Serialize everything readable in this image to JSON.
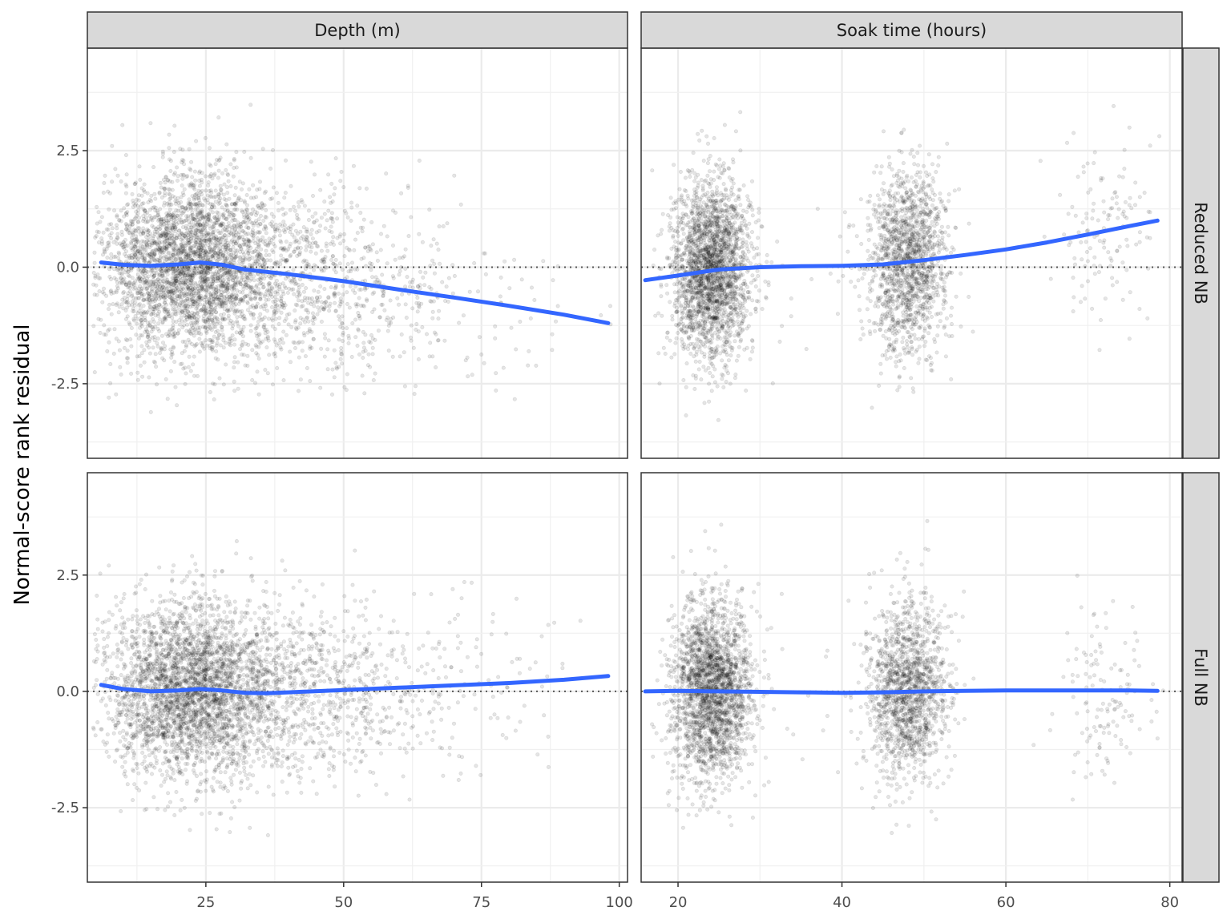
{
  "chart_data": {
    "type": "scatter",
    "ylabel": "Normal-score rank residual",
    "xlabel": "",
    "ylim": [
      -4.1,
      4.7
    ],
    "yticks": [
      -2.5,
      0.0,
      2.5
    ],
    "ytick_labels": [
      "-2.5",
      "0.0",
      "2.5"
    ],
    "reference_line": {
      "y": 0,
      "style": "dotted"
    },
    "smooth_color": "#3366FF",
    "point_color": "#000000",
    "grid": true,
    "columns": [
      {
        "label": "Depth (m)",
        "xlim": [
          3.5,
          101.5
        ],
        "xticks": [
          25,
          50,
          75,
          100
        ],
        "xtick_labels": [
          "25",
          "50",
          "75",
          "100"
        ]
      },
      {
        "label": "Soak time (hours)",
        "xlim": [
          15.5,
          81.5
        ],
        "xticks": [
          20,
          40,
          60,
          80
        ],
        "xtick_labels": [
          "20",
          "40",
          "60",
          "80"
        ]
      }
    ],
    "rows": [
      {
        "label": "Reduced NB"
      },
      {
        "label": "Full NB"
      }
    ],
    "panels": [
      {
        "row": 0,
        "col": 0,
        "smooth": {
          "x": [
            6,
            10,
            15,
            20,
            24,
            28,
            32,
            40,
            50,
            60,
            70,
            80,
            90,
            98
          ],
          "y": [
            0.1,
            0.05,
            0.03,
            0.06,
            0.1,
            0.05,
            -0.05,
            -0.15,
            -0.3,
            -0.48,
            -0.65,
            -0.83,
            -1.02,
            -1.2
          ]
        }
      },
      {
        "row": 0,
        "col": 1,
        "smooth": {
          "x": [
            16,
            20,
            25,
            30,
            35,
            40,
            45,
            50,
            55,
            60,
            65,
            70,
            75,
            78.5
          ],
          "y": [
            -0.28,
            -0.18,
            -0.05,
            0.0,
            0.02,
            0.03,
            0.06,
            0.15,
            0.26,
            0.38,
            0.53,
            0.7,
            0.88,
            1.0
          ]
        }
      },
      {
        "row": 1,
        "col": 0,
        "smooth": {
          "x": [
            6,
            10,
            15,
            20,
            24,
            28,
            32,
            36,
            40,
            50,
            60,
            70,
            80,
            90,
            98
          ],
          "y": [
            0.14,
            0.05,
            0.0,
            0.02,
            0.05,
            0.02,
            -0.03,
            -0.04,
            -0.02,
            0.03,
            0.08,
            0.13,
            0.18,
            0.25,
            0.33
          ]
        }
      },
      {
        "row": 1,
        "col": 1,
        "smooth": {
          "x": [
            16,
            20,
            25,
            30,
            35,
            40,
            45,
            50,
            55,
            60,
            65,
            70,
            75,
            78.5
          ],
          "y": [
            0.0,
            0.01,
            0.0,
            -0.01,
            -0.02,
            -0.03,
            -0.02,
            0.0,
            0.01,
            0.02,
            0.02,
            0.02,
            0.02,
            0.01
          ]
        }
      }
    ],
    "point_clusters": {
      "depth": [
        {
          "x_mean": 22,
          "x_sd": 8,
          "count": 3200
        },
        {
          "x_mean": 42,
          "x_sd": 9,
          "count": 700
        },
        {
          "x_mean": 60,
          "x_sd": 9,
          "count": 200
        },
        {
          "x_mean": 78,
          "x_sd": 8,
          "count": 40
        }
      ],
      "soak": [
        {
          "x_mean": 24,
          "x_sd": 2.4,
          "count": 2300
        },
        {
          "x_mean": 48,
          "x_sd": 2.4,
          "count": 1500
        },
        {
          "x_mean": 72,
          "x_sd": 3,
          "count": 130
        },
        {
          "x_mean": 35,
          "x_sd": 5,
          "count": 20
        }
      ],
      "y_sd": 0.95
    }
  }
}
